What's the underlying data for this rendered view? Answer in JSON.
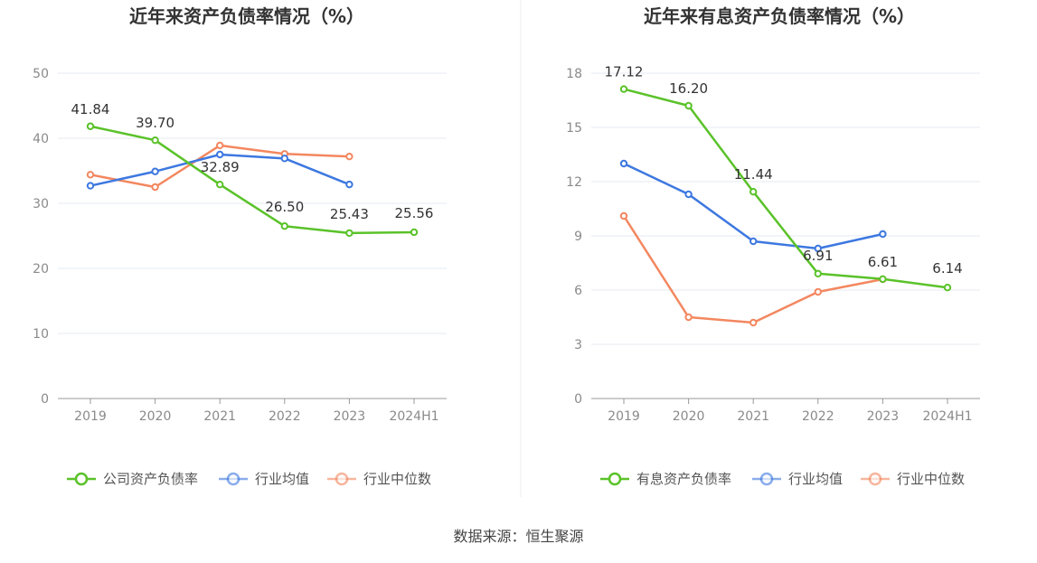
{
  "chart_data": [
    {
      "type": "line",
      "title": "近年来资产负债率情况（%）",
      "categories": [
        "2019",
        "2020",
        "2021",
        "2022",
        "2023",
        "2024H1"
      ],
      "ylim": [
        0,
        50
      ],
      "yticks": [
        0,
        10,
        20,
        30,
        40,
        50
      ],
      "grid": true,
      "legend_position": "bottom",
      "series": [
        {
          "name": "公司资产负债率",
          "color": "#5ac229",
          "values": [
            41.84,
            39.7,
            32.89,
            26.5,
            25.43,
            25.56
          ],
          "labels": [
            "41.84",
            "39.70",
            "32.89",
            "26.50",
            "25.43",
            "25.56"
          ]
        },
        {
          "name": "行业均值",
          "color": "#3d78e0",
          "values": [
            32.7,
            34.9,
            37.5,
            36.9,
            32.9,
            null
          ]
        },
        {
          "name": "行业中位数",
          "color": "#f3875f",
          "values": [
            34.4,
            32.5,
            38.9,
            37.6,
            37.2,
            null
          ]
        }
      ]
    },
    {
      "type": "line",
      "title": "近年来有息资产负债率情况（%）",
      "categories": [
        "2019",
        "2020",
        "2021",
        "2022",
        "2023",
        "2024H1"
      ],
      "ylim": [
        0,
        18
      ],
      "yticks": [
        0,
        3,
        6,
        9,
        12,
        15,
        18
      ],
      "grid": true,
      "legend_position": "bottom",
      "series": [
        {
          "name": "有息资产负债率",
          "color": "#5ac229",
          "values": [
            17.12,
            16.2,
            11.44,
            6.91,
            6.61,
            6.14
          ],
          "labels": [
            "17.12",
            "16.20",
            "11.44",
            "6.91",
            "6.61",
            "6.14"
          ]
        },
        {
          "name": "行业均值",
          "color": "#3d78e0",
          "values": [
            13.0,
            11.3,
            8.7,
            8.3,
            9.1,
            null
          ]
        },
        {
          "name": "行业中位数",
          "color": "#f3875f",
          "values": [
            10.1,
            4.5,
            4.2,
            5.9,
            6.6,
            null
          ]
        }
      ]
    }
  ],
  "source_text": "数据来源：恒生聚源"
}
